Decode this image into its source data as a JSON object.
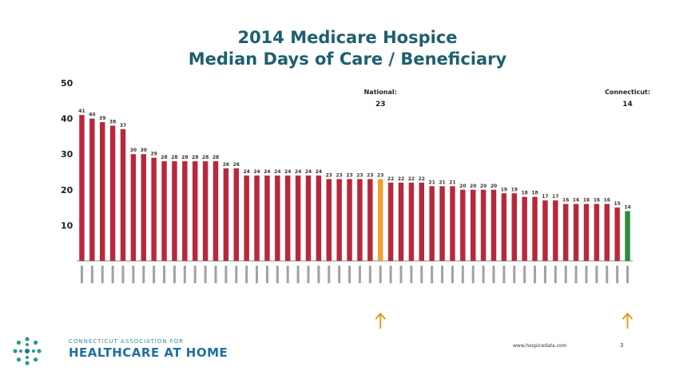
{
  "slide": {
    "logo_assoc": "CONNECTICUT ASSOCIATION FOR",
    "logo_name": "HEALTHCARE AT HOME",
    "footer_url": "www.hospicedata.com",
    "page_number": "3"
  },
  "chart_data": {
    "type": "bar",
    "title": "2014 Medicare Hospice",
    "subtitle": "Median Days of Care / Beneficiary",
    "ylim": [
      0,
      50
    ],
    "yticks": [
      10,
      20,
      30,
      40,
      50
    ],
    "grid": false,
    "legend": "none",
    "colors": {
      "default": "#b8283c",
      "national": "#f0a030",
      "connecticut": "#2e8b3a",
      "arrow": "#e0a020"
    },
    "values": [
      41,
      40,
      39,
      38,
      37,
      30,
      30,
      29,
      28,
      28,
      28,
      28,
      28,
      28,
      26,
      26,
      24,
      24,
      24,
      24,
      24,
      24,
      24,
      24,
      23,
      23,
      23,
      23,
      23,
      23,
      22,
      22,
      22,
      22,
      21,
      21,
      21,
      20,
      20,
      20,
      20,
      19,
      19,
      18,
      18,
      17,
      17,
      16,
      16,
      16,
      16,
      16,
      15,
      14
    ],
    "highlight": [
      {
        "index": 29,
        "label_line1": "National:",
        "label_line2": "23",
        "color_key": "national"
      },
      {
        "index": 53,
        "label_line1": "Connecticut:",
        "label_line2": "14",
        "color_key": "connecticut"
      }
    ]
  }
}
